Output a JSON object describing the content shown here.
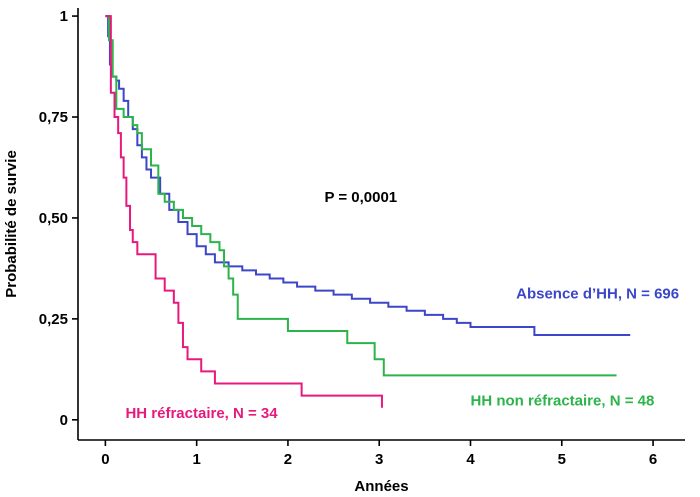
{
  "chart_data": {
    "type": "line",
    "step": true,
    "xlabel": "Années",
    "ylabel": "Probabilité de survie",
    "xlim": [
      -0.3,
      6.35
    ],
    "ylim": [
      -0.05,
      1.02
    ],
    "xticks": [
      {
        "v": 0,
        "label": "0"
      },
      {
        "v": 1,
        "label": "1"
      },
      {
        "v": 2,
        "label": "2"
      },
      {
        "v": 3,
        "label": "3"
      },
      {
        "v": 4,
        "label": "4"
      },
      {
        "v": 5,
        "label": "5"
      },
      {
        "v": 6,
        "label": "6"
      }
    ],
    "yticks": [
      {
        "v": 0,
        "label": "0"
      },
      {
        "v": 0.25,
        "label": "0,25"
      },
      {
        "v": 0.5,
        "label": "0,50"
      },
      {
        "v": 0.75,
        "label": "0,75"
      },
      {
        "v": 1,
        "label": "1"
      }
    ],
    "annotations": [
      {
        "text": "P = 0,0001",
        "x": 2.4,
        "y": 0.54,
        "color": "#000000"
      }
    ],
    "series": [
      {
        "name": "Absence d’HH, N = 696",
        "color": "#3c46c8",
        "label_pos": {
          "x": 4.5,
          "y": 0.3
        },
        "x": [
          0,
          0.03,
          0.05,
          0.07,
          0.09,
          0.12,
          0.15,
          0.2,
          0.25,
          0.3,
          0.35,
          0.4,
          0.45,
          0.5,
          0.6,
          0.7,
          0.8,
          0.9,
          1.0,
          1.1,
          1.2,
          1.35,
          1.5,
          1.65,
          1.8,
          1.95,
          2.1,
          2.3,
          2.5,
          2.7,
          2.9,
          3.1,
          3.3,
          3.5,
          3.7,
          3.85,
          4.0,
          4.3,
          4.7,
          5.0,
          5.75
        ],
        "y": [
          1,
          0.95,
          0.88,
          0.85,
          0.85,
          0.84,
          0.82,
          0.79,
          0.75,
          0.72,
          0.68,
          0.65,
          0.62,
          0.6,
          0.56,
          0.52,
          0.49,
          0.46,
          0.43,
          0.41,
          0.39,
          0.38,
          0.37,
          0.36,
          0.35,
          0.34,
          0.33,
          0.32,
          0.31,
          0.3,
          0.29,
          0.28,
          0.27,
          0.26,
          0.25,
          0.24,
          0.23,
          0.23,
          0.21,
          0.21,
          0.21
        ]
      },
      {
        "name": "HH non réfractaire, N = 48",
        "color": "#2cb34a",
        "label_pos": {
          "x": 4.0,
          "y": 0.035
        },
        "x": [
          0,
          0.04,
          0.08,
          0.12,
          0.2,
          0.3,
          0.35,
          0.4,
          0.5,
          0.58,
          0.65,
          0.75,
          0.85,
          0.95,
          1.05,
          1.15,
          1.25,
          1.3,
          1.35,
          1.4,
          1.45,
          2.0,
          2.65,
          2.95,
          3.05,
          5.6
        ],
        "y": [
          1,
          0.94,
          0.85,
          0.77,
          0.75,
          0.73,
          0.71,
          0.67,
          0.63,
          0.56,
          0.54,
          0.52,
          0.5,
          0.48,
          0.46,
          0.44,
          0.42,
          0.38,
          0.35,
          0.31,
          0.25,
          0.22,
          0.19,
          0.15,
          0.11,
          0.11
        ]
      },
      {
        "name": "HH réfractaire, N = 34",
        "color": "#e8197c",
        "label_pos": {
          "x": 0.22,
          "y": 0.005
        },
        "x": [
          0,
          0.06,
          0.1,
          0.14,
          0.17,
          0.2,
          0.23,
          0.27,
          0.3,
          0.35,
          0.55,
          0.65,
          0.75,
          0.8,
          0.85,
          0.9,
          1.05,
          1.2,
          2.15,
          3.03
        ],
        "y": [
          1,
          0.81,
          0.75,
          0.71,
          0.65,
          0.6,
          0.53,
          0.47,
          0.44,
          0.41,
          0.35,
          0.32,
          0.29,
          0.24,
          0.18,
          0.15,
          0.12,
          0.09,
          0.06,
          0.03
        ]
      }
    ]
  }
}
